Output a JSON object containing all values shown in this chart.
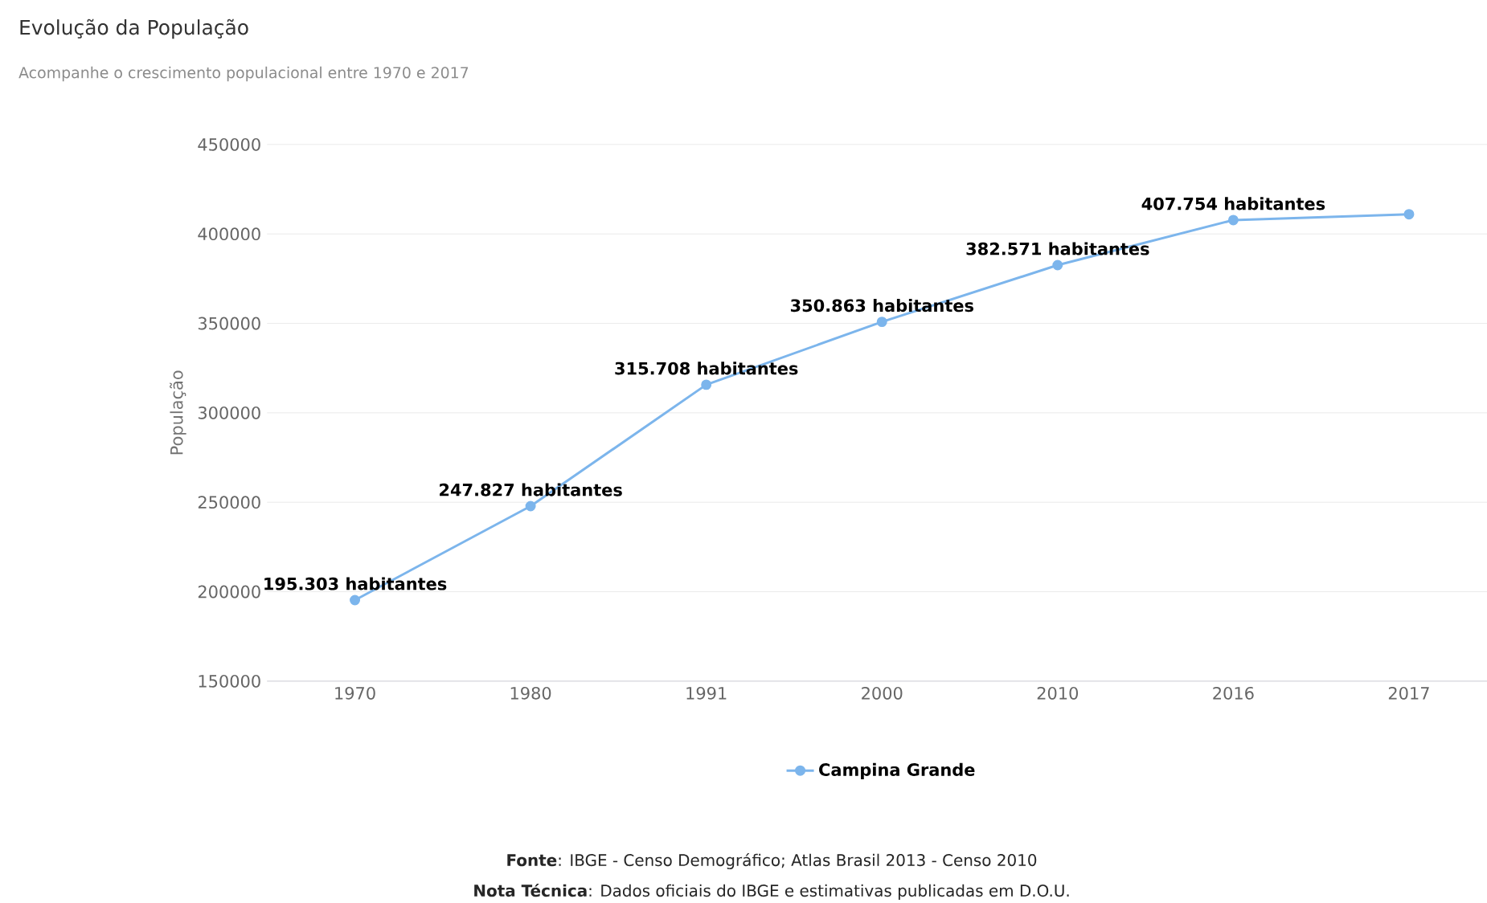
{
  "chart_data": {
    "type": "line",
    "title": "Evolução da População",
    "subtitle": "Acompanhe o crescimento populacional entre 1970 e 2017",
    "ylabel": "População",
    "categories": [
      "1970",
      "1980",
      "1991",
      "2000",
      "2010",
      "2016",
      "2017"
    ],
    "series": [
      {
        "name": "Campina Grande",
        "color": "#7cb5ec",
        "values": [
          195303,
          247827,
          315708,
          350863,
          382571,
          407754,
          411000
        ],
        "value_labels": [
          "195.303 habitantes",
          "247.827 habitantes",
          "315.708 habitantes",
          "350.863 habitantes",
          "382.571 habitantes",
          "407.754 habitantes",
          null
        ]
      }
    ],
    "ylim": [
      150000,
      450000
    ],
    "yticks": [
      150000,
      200000,
      250000,
      300000,
      350000,
      400000,
      450000
    ],
    "grid": "y",
    "legend": "bottom",
    "marker": "circle",
    "line_style": "solid",
    "annotations": [
      "**Fonte**: IBGE - Censo Demográfico; Atlas Brasil 2013 - Censo 2010",
      "**Nota Técnica**: Dados oficiais do IBGE e estimativas publicadas em D.O.U."
    ]
  }
}
